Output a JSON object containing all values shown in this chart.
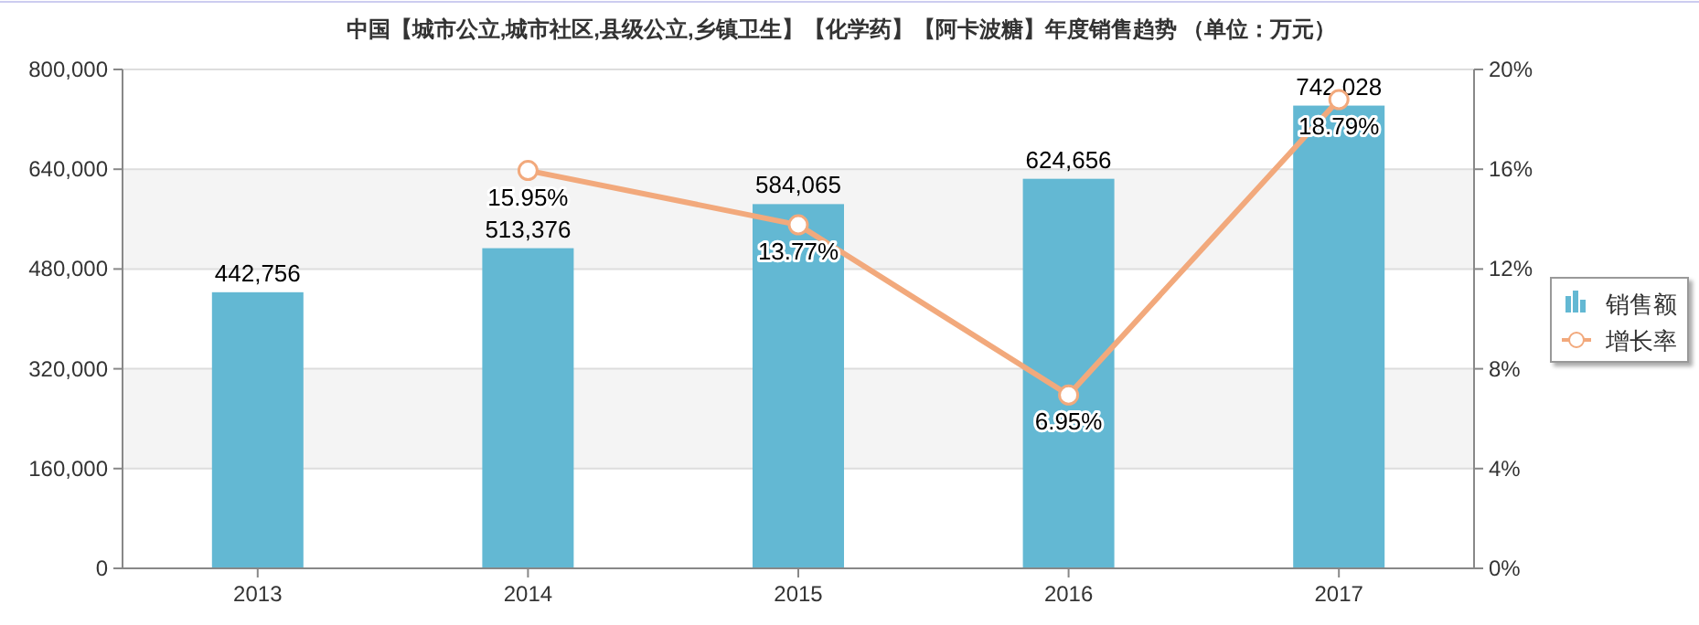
{
  "chart_data": {
    "type": "bar",
    "title": "中国【城市公立,城市社区,县级公立,乡镇卫生】【化学药】【阿卡波糖】年度销售趋势 （单位：万元）",
    "categories": [
      "2013",
      "2014",
      "2015",
      "2016",
      "2017"
    ],
    "series": [
      {
        "name": "销售额",
        "color": "#63b8d3",
        "values": [
          442756,
          513376,
          584065,
          624656,
          742028
        ],
        "value_labels": [
          "442,756",
          "513,376",
          "584,065",
          "624,656",
          "742,028"
        ]
      },
      {
        "name": "增长率",
        "type": "line",
        "axis": "y2",
        "color": "#f2a97c",
        "marker": "circle",
        "values": [
          null,
          15.95,
          13.77,
          6.95,
          18.79
        ],
        "value_labels": [
          null,
          "15.95%",
          "13.77%",
          "6.95%",
          "18.79%"
        ]
      }
    ],
    "ylim": [
      0,
      800000
    ],
    "yticks": [
      {
        "value": 0,
        "label": "0"
      },
      {
        "value": 160000,
        "label": "160,000"
      },
      {
        "value": 320000,
        "label": "320,000"
      },
      {
        "value": 480000,
        "label": "480,000"
      },
      {
        "value": 640000,
        "label": "640,000"
      },
      {
        "value": 800000,
        "label": "800,000"
      }
    ],
    "y2lim": [
      0,
      20
    ],
    "y2ticks": [
      {
        "value": 0,
        "label": "0%"
      },
      {
        "value": 4,
        "label": "4%"
      },
      {
        "value": 8,
        "label": "8%"
      },
      {
        "value": 12,
        "label": "12%"
      },
      {
        "value": 16,
        "label": "16%"
      },
      {
        "value": 20,
        "label": "20%"
      }
    ],
    "grid": "y",
    "legend": "right"
  }
}
